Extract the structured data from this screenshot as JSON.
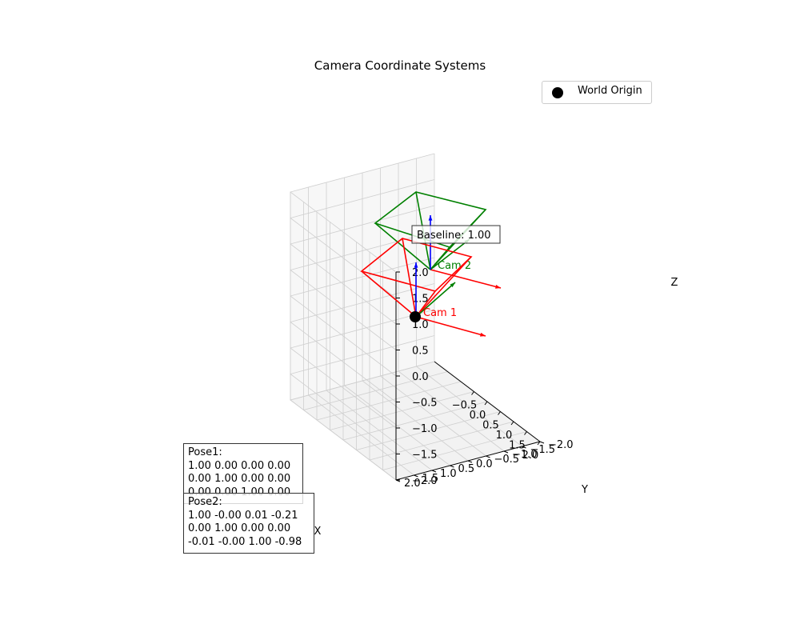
{
  "chart_data": {
    "type": "scatter",
    "subtype": "3d-camera-poses",
    "title": "Camera Coordinate Systems",
    "xlabel": "X",
    "ylabel": "Y",
    "zlabel": "Z",
    "xlim": [
      -2,
      2
    ],
    "ylim": [
      -2,
      2
    ],
    "zlim": [
      -2,
      2
    ],
    "x_ticks": [
      "−0.5",
      "0.0",
      "0.5",
      "1.0",
      "1.5",
      "2.0"
    ],
    "y_ticks": [
      "−2.0",
      "−1.5",
      "−1.0",
      "−0.5",
      "0.0",
      "0.5",
      "1.0",
      "1.5",
      "2.0"
    ],
    "z_ticks": [
      "−2.0",
      "−1.5",
      "−1.0",
      "−0.5",
      "0.0",
      "0.5",
      "1.0",
      "1.5",
      "2.0"
    ],
    "grid": true,
    "legend_position": "top-right",
    "series": [
      {
        "name": "World Origin",
        "x": [
          0
        ],
        "y": [
          0
        ],
        "z": [
          0
        ],
        "color": "#000000"
      }
    ],
    "cameras": [
      {
        "label": "Cam 1",
        "color": "#ff0000",
        "position": [
          0,
          0,
          0
        ]
      },
      {
        "label": "Cam 2",
        "color": "#008000",
        "position": [
          -0.21,
          0,
          -0.98
        ]
      }
    ],
    "axis_colors": {
      "x": "#ff0000",
      "y": "#008000",
      "z": "#0000ff"
    },
    "baseline_label": "Baseline: 1.00",
    "annotations": {
      "pose1": "Pose1:\n1.00 0.00 0.00 0.00\n0.00 1.00 0.00 0.00\n0.00 0.00 1.00 0.00",
      "pose2": "Pose2:\n1.00 -0.00 0.01 -0.21\n0.00 1.00 0.00 0.00\n-0.01 -0.00 1.00 -0.98"
    }
  }
}
